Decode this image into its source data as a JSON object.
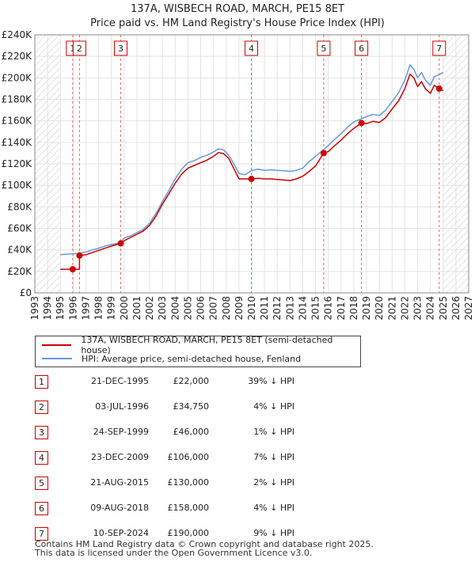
{
  "title": "137A, WISBECH ROAD, MARCH, PE15 8ET",
  "subtitle": "Price paid vs. HM Land Registry's House Price Index (HPI)",
  "legend": {
    "property_label": "137A, WISBECH ROAD, MARCH, PE15 8ET (semi-detached house)",
    "hpi_label": "HPI: Average price, semi-detached house, Fenland"
  },
  "transactions": [
    {
      "num": "1",
      "date": "21-DEC-1995",
      "price": "£22,000",
      "hpi": "39% ↓ HPI"
    },
    {
      "num": "2",
      "date": "03-JUL-1996",
      "price": "£34,750",
      "hpi": "4% ↓ HPI"
    },
    {
      "num": "3",
      "date": "24-SEP-1999",
      "price": "£46,000",
      "hpi": "1% ↓ HPI"
    },
    {
      "num": "4",
      "date": "23-DEC-2009",
      "price": "£106,000",
      "hpi": "7% ↓ HPI"
    },
    {
      "num": "5",
      "date": "21-AUG-2015",
      "price": "£130,000",
      "hpi": "2% ↓ HPI"
    },
    {
      "num": "6",
      "date": "09-AUG-2018",
      "price": "£158,000",
      "hpi": "4% ↓ HPI"
    },
    {
      "num": "7",
      "date": "10-SEP-2024",
      "price": "£190,000",
      "hpi": "9% ↓ HPI"
    }
  ],
  "footer": {
    "line1": "Contains HM Land Registry data © Crown copyright and database right 2025.",
    "line2": "This data is licensed under the Open Government Licence v3.0."
  },
  "chart_data": {
    "type": "line",
    "xlim": [
      1993,
      2027
    ],
    "ylim": [
      0,
      240000
    ],
    "x_ticks": [
      1993,
      1994,
      1995,
      1996,
      1997,
      1998,
      1999,
      2000,
      2001,
      2002,
      2003,
      2004,
      2005,
      2006,
      2007,
      2008,
      2009,
      2010,
      2011,
      2012,
      2013,
      2014,
      2015,
      2016,
      2017,
      2018,
      2019,
      2020,
      2021,
      2022,
      2023,
      2024,
      2025,
      2026,
      2027
    ],
    "y_ticks": [
      0,
      20000,
      40000,
      60000,
      80000,
      100000,
      120000,
      140000,
      160000,
      180000,
      200000,
      220000,
      240000
    ],
    "y_tick_labels": [
      "£0",
      "£20K",
      "£40K",
      "£60K",
      "£80K",
      "£100K",
      "£120K",
      "£140K",
      "£160K",
      "£180K",
      "£200K",
      "£220K",
      "£240K"
    ],
    "hatched_before": 1995.0,
    "hatched_after": 2025.0,
    "colors": {
      "property": "#cc0000",
      "hpi": "#6699dd",
      "marker": "#cc0000",
      "vline": "#dd6666"
    },
    "series": [
      {
        "name": "HPI: Average price, semi-detached house, Fenland",
        "x": [
          1995.0,
          1995.5,
          1996.0,
          1996.5,
          1997.0,
          1997.5,
          1998.0,
          1998.5,
          1999.0,
          1999.7,
          2000.0,
          2000.5,
          2001.0,
          2001.5,
          2002.0,
          2002.5,
          2003.0,
          2003.5,
          2004.0,
          2004.5,
          2005.0,
          2005.5,
          2006.0,
          2006.5,
          2007.0,
          2007.4,
          2007.8,
          2008.2,
          2008.6,
          2009.0,
          2009.5,
          2010.0,
          2010.5,
          2011.0,
          2011.5,
          2012.0,
          2012.5,
          2013.0,
          2013.5,
          2014.0,
          2014.5,
          2015.0,
          2015.6,
          2016.0,
          2016.5,
          2017.0,
          2017.5,
          2018.0,
          2018.6,
          2019.0,
          2019.5,
          2020.0,
          2020.5,
          2021.0,
          2021.5,
          2022.0,
          2022.4,
          2022.7,
          2023.0,
          2023.3,
          2023.6,
          2024.0,
          2024.3,
          2024.7,
          2025.0
        ],
        "values": [
          35500,
          36000,
          36200,
          36800,
          38000,
          40000,
          41500,
          43500,
          45000,
          46500,
          51000,
          53000,
          56000,
          59000,
          65000,
          74000,
          85000,
          95000,
          106000,
          115000,
          121000,
          123000,
          126000,
          128000,
          131000,
          134000,
          133000,
          128000,
          120000,
          111000,
          110000,
          114000,
          115000,
          114000,
          114500,
          114000,
          113500,
          113000,
          114000,
          116000,
          122000,
          127000,
          133000,
          137000,
          143000,
          148000,
          154000,
          159000,
          162000,
          164000,
          166000,
          165000,
          170000,
          178000,
          186000,
          198000,
          212000,
          208000,
          200000,
          205000,
          198000,
          193000,
          201000,
          203000,
          205000
        ]
      },
      {
        "name": "137A, WISBECH ROAD, MARCH, PE15 8ET (semi-detached house)",
        "x": [
          1995.0,
          1995.97,
          1995.97,
          1996.5,
          1996.5,
          1997.0,
          1997.5,
          1998.0,
          1998.5,
          1999.0,
          1999.73,
          2000.0,
          2000.5,
          2001.0,
          2001.5,
          2002.0,
          2002.5,
          2003.0,
          2003.5,
          2004.0,
          2004.5,
          2005.0,
          2005.5,
          2006.0,
          2006.5,
          2007.0,
          2007.4,
          2007.8,
          2008.2,
          2008.6,
          2009.0,
          2009.97,
          2010.5,
          2011.0,
          2011.5,
          2012.0,
          2012.5,
          2013.0,
          2013.5,
          2014.0,
          2014.5,
          2015.0,
          2015.64,
          2016.0,
          2016.5,
          2017.0,
          2017.5,
          2018.0,
          2018.6,
          2019.0,
          2019.5,
          2020.0,
          2020.5,
          2021.0,
          2021.5,
          2022.0,
          2022.4,
          2022.7,
          2023.0,
          2023.3,
          2023.6,
          2024.0,
          2024.3,
          2024.69,
          2025.0
        ],
        "values": [
          22000,
          22000,
          22000,
          22000,
          34750,
          35500,
          37500,
          39500,
          41500,
          43500,
          46000,
          48500,
          51500,
          54500,
          57500,
          63000,
          71500,
          82500,
          92000,
          102000,
          110500,
          116000,
          118500,
          121000,
          123500,
          127000,
          130500,
          129500,
          125000,
          115500,
          106000,
          106000,
          106500,
          106000,
          106000,
          105500,
          105000,
          104500,
          106000,
          108500,
          113000,
          118000,
          130000,
          131500,
          137000,
          142000,
          148000,
          153000,
          158000,
          157500,
          159500,
          158500,
          163000,
          171000,
          178500,
          190000,
          203500,
          200000,
          192000,
          196500,
          190000,
          185500,
          193000,
          190000,
          188000
        ]
      }
    ],
    "sales": [
      {
        "label": "1",
        "x": 1995.97,
        "value": 22000
      },
      {
        "label": "2",
        "x": 1996.5,
        "value": 34750
      },
      {
        "label": "3",
        "x": 1999.73,
        "value": 46000
      },
      {
        "label": "4",
        "x": 2009.97,
        "value": 106000
      },
      {
        "label": "5",
        "x": 2015.64,
        "value": 130000
      },
      {
        "label": "6",
        "x": 2018.6,
        "value": 158000
      },
      {
        "label": "7",
        "x": 2024.69,
        "value": 190000
      }
    ]
  }
}
